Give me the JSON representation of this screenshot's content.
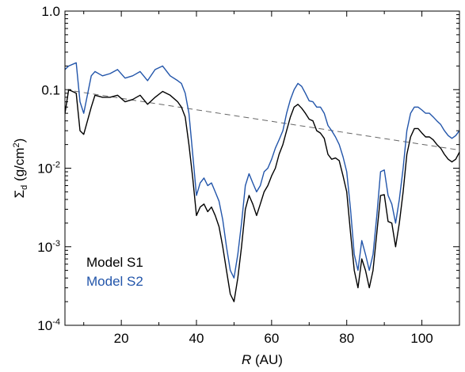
{
  "chart_data": {
    "type": "line",
    "xlabel": {
      "italic": "R",
      "rest": " (AU)"
    },
    "ylabel": {
      "sigma": "Σ",
      "sub": "d",
      "rest_pre": " (g/cm",
      "sup": "2",
      "rest_post": ")"
    },
    "xlim": [
      5,
      110
    ],
    "ylim": [
      0.0001,
      1.0
    ],
    "yscale": "log",
    "xticks": [
      20,
      40,
      60,
      80,
      100
    ],
    "yticks": [
      {
        "value": 1.0,
        "label": "1.0"
      },
      {
        "value": 0.1,
        "label": "0.1"
      },
      {
        "value": 0.01,
        "base": "10",
        "exp": "-2"
      },
      {
        "value": 0.001,
        "base": "10",
        "exp": "-3"
      },
      {
        "value": 0.0001,
        "base": "10",
        "exp": "-4"
      }
    ],
    "series": [
      {
        "name": "Model S1",
        "color": "#000000",
        "style": "solid",
        "x": [
          5,
          6,
          8,
          9,
          10,
          12,
          13,
          15,
          17,
          19,
          21,
          23,
          25,
          27,
          29,
          31,
          33,
          35,
          36,
          37,
          38,
          39,
          40,
          41,
          42,
          43,
          44,
          45,
          46,
          47,
          48,
          49,
          50,
          51,
          52,
          53,
          54,
          55,
          56,
          57,
          58,
          59,
          60,
          61,
          62,
          63,
          64,
          65,
          66,
          67,
          68,
          69,
          70,
          71,
          72,
          73,
          74,
          75,
          76,
          77,
          78,
          79,
          80,
          81,
          82,
          83,
          84,
          85,
          86,
          87,
          88,
          89,
          90,
          91,
          92,
          93,
          94,
          95,
          96,
          97,
          98,
          99,
          100,
          101,
          102,
          103,
          104,
          105,
          106,
          107,
          108,
          109,
          110
        ],
        "values": [
          0.05,
          0.1,
          0.09,
          0.03,
          0.027,
          0.06,
          0.085,
          0.08,
          0.08,
          0.085,
          0.07,
          0.075,
          0.085,
          0.065,
          0.08,
          0.095,
          0.085,
          0.07,
          0.06,
          0.045,
          0.02,
          0.0075,
          0.0025,
          0.0032,
          0.0035,
          0.0028,
          0.0032,
          0.0025,
          0.0018,
          0.001,
          0.0005,
          0.00025,
          0.0002,
          0.0004,
          0.001,
          0.003,
          0.0045,
          0.0035,
          0.0025,
          0.0035,
          0.005,
          0.006,
          0.008,
          0.01,
          0.015,
          0.02,
          0.03,
          0.045,
          0.06,
          0.065,
          0.058,
          0.05,
          0.042,
          0.04,
          0.03,
          0.028,
          0.024,
          0.015,
          0.013,
          0.0135,
          0.0125,
          0.008,
          0.005,
          0.0015,
          0.0005,
          0.0003,
          0.0007,
          0.0005,
          0.0003,
          0.0005,
          0.0015,
          0.0045,
          0.0046,
          0.0021,
          0.002,
          0.001,
          0.002,
          0.005,
          0.015,
          0.025,
          0.032,
          0.032,
          0.028,
          0.025,
          0.025,
          0.023,
          0.02,
          0.018,
          0.015,
          0.013,
          0.012,
          0.013,
          0.016
        ]
      },
      {
        "name": "Model S2",
        "color": "#2255aa",
        "style": "solid",
        "x": [
          5,
          6,
          8,
          9,
          10,
          12,
          13,
          15,
          17,
          19,
          21,
          23,
          25,
          27,
          29,
          31,
          33,
          35,
          36,
          37,
          38,
          39,
          40,
          41,
          42,
          43,
          44,
          45,
          46,
          47,
          48,
          49,
          50,
          51,
          52,
          53,
          54,
          55,
          56,
          57,
          58,
          59,
          60,
          61,
          62,
          63,
          64,
          65,
          66,
          67,
          68,
          69,
          70,
          71,
          72,
          73,
          74,
          75,
          76,
          77,
          78,
          79,
          80,
          81,
          82,
          83,
          84,
          85,
          86,
          87,
          88,
          89,
          90,
          91,
          92,
          93,
          94,
          95,
          96,
          97,
          98,
          99,
          100,
          101,
          102,
          103,
          104,
          105,
          106,
          107,
          108,
          109,
          110
        ],
        "values": [
          0.18,
          0.2,
          0.22,
          0.07,
          0.05,
          0.15,
          0.17,
          0.15,
          0.16,
          0.18,
          0.14,
          0.15,
          0.17,
          0.13,
          0.18,
          0.2,
          0.15,
          0.13,
          0.12,
          0.09,
          0.05,
          0.015,
          0.0045,
          0.0065,
          0.0075,
          0.006,
          0.0065,
          0.005,
          0.0038,
          0.0022,
          0.001,
          0.0005,
          0.0004,
          0.0008,
          0.002,
          0.006,
          0.0085,
          0.0065,
          0.005,
          0.006,
          0.009,
          0.01,
          0.013,
          0.018,
          0.023,
          0.03,
          0.05,
          0.075,
          0.1,
          0.12,
          0.11,
          0.09,
          0.072,
          0.07,
          0.06,
          0.06,
          0.05,
          0.035,
          0.03,
          0.025,
          0.02,
          0.014,
          0.009,
          0.003,
          0.0008,
          0.0005,
          0.0012,
          0.0008,
          0.0005,
          0.0008,
          0.0025,
          0.009,
          0.0095,
          0.0045,
          0.0035,
          0.002,
          0.004,
          0.01,
          0.03,
          0.05,
          0.06,
          0.06,
          0.055,
          0.05,
          0.05,
          0.045,
          0.04,
          0.036,
          0.03,
          0.026,
          0.024,
          0.026,
          0.03
        ]
      },
      {
        "name": "",
        "color": "#666666",
        "style": "dashed",
        "x": [
          5,
          110
        ],
        "values": [
          0.1,
          0.017
        ]
      }
    ],
    "legend": {
      "position": "bottom-left",
      "items": [
        {
          "label": "Model S1",
          "color": "#000000"
        },
        {
          "label": "Model S2",
          "color": "#2255aa"
        }
      ]
    }
  }
}
